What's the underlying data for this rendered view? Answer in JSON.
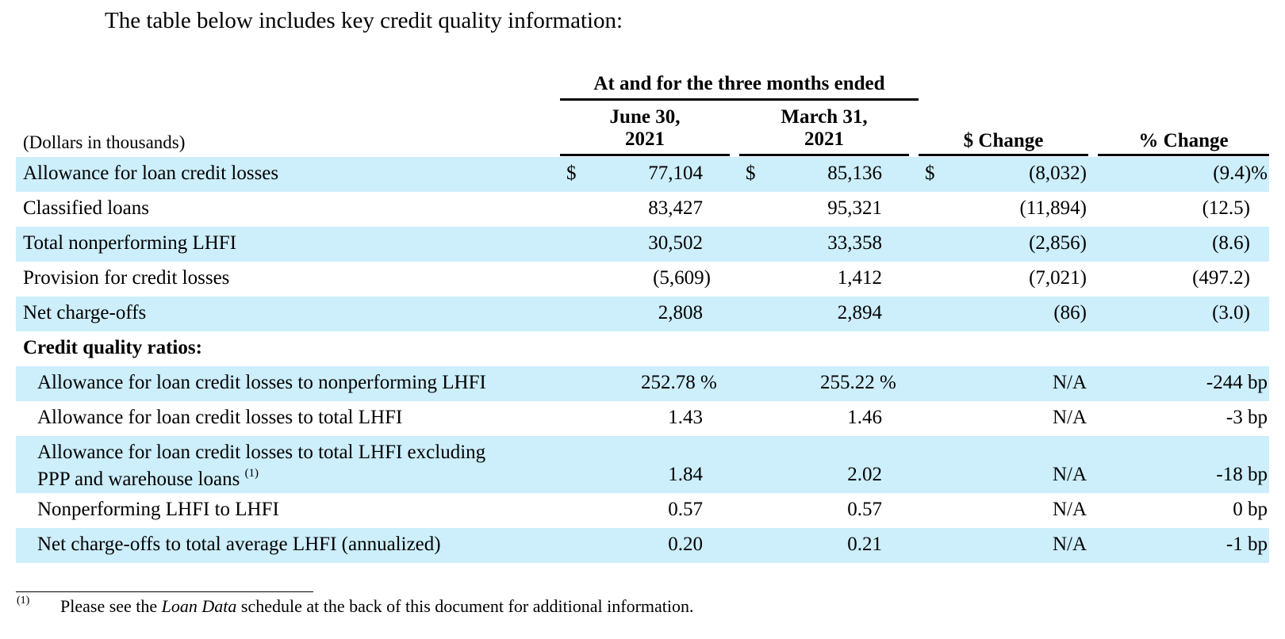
{
  "intro": "The table below includes key credit quality information:",
  "header": {
    "group": "At and for the three months ended",
    "col1": [
      "June 30,",
      "2021"
    ],
    "col2": [
      "March 31,",
      "2021"
    ],
    "col3": "$ Change",
    "col4": "% Change",
    "units": "(Dollars in thousands)"
  },
  "rows": [
    {
      "label": "Allowance for loan credit losses",
      "cur1": "$",
      "v1": "77,104",
      "cur2": "$",
      "v2": "85,136",
      "cur3": "$",
      "v3": "(8,032)",
      "v4": "(9.4)%"
    },
    {
      "label": "Classified loans",
      "v1": "83,427",
      "v2": "95,321",
      "v3": "(11,894)",
      "v4": "(12.5)"
    },
    {
      "label": "Total nonperforming LHFI",
      "v1": "30,502",
      "v2": "33,358",
      "v3": "(2,856)",
      "v4": "(8.6)"
    },
    {
      "label": "Provision for credit losses",
      "v1": "(5,609)",
      "v2": "1,412",
      "v3": "(7,021)",
      "v4": "(497.2)"
    },
    {
      "label": "Net charge-offs",
      "v1": "2,808",
      "v2": "2,894",
      "v3": "(86)",
      "v4": "(3.0)"
    },
    {
      "label": "Credit quality ratios:"
    },
    {
      "label": "Allowance for loan credit losses to nonperforming LHFI",
      "v1": "252.78 %",
      "v2": "255.22 %",
      "v3": "N/A",
      "v4": "-244 bp"
    },
    {
      "label": "Allowance for loan credit losses to total LHFI",
      "v1": "1.43",
      "v2": "1.46",
      "v3": "N/A",
      "v4": "-3 bp"
    },
    {
      "label_line1": "Allowance for loan credit losses to total LHFI excluding",
      "label_line2": "PPP and warehouse loans",
      "label_sup": "(1)",
      "v1": "1.84",
      "v2": "2.02",
      "v3": "N/A",
      "v4": "-18 bp"
    },
    {
      "label": "Nonperforming LHFI to LHFI",
      "v1": "0.57",
      "v2": "0.57",
      "v3": "N/A",
      "v4": "0 bp"
    },
    {
      "label": "Net charge-offs to total average LHFI (annualized)",
      "v1": "0.20",
      "v2": "0.21",
      "v3": "N/A",
      "v4": "-1 bp"
    }
  ],
  "footnote": {
    "mark": "(1)",
    "text_before": "Please see the ",
    "text_italic": "Loan Data",
    "text_after": " schedule at the back of this document for additional information."
  }
}
